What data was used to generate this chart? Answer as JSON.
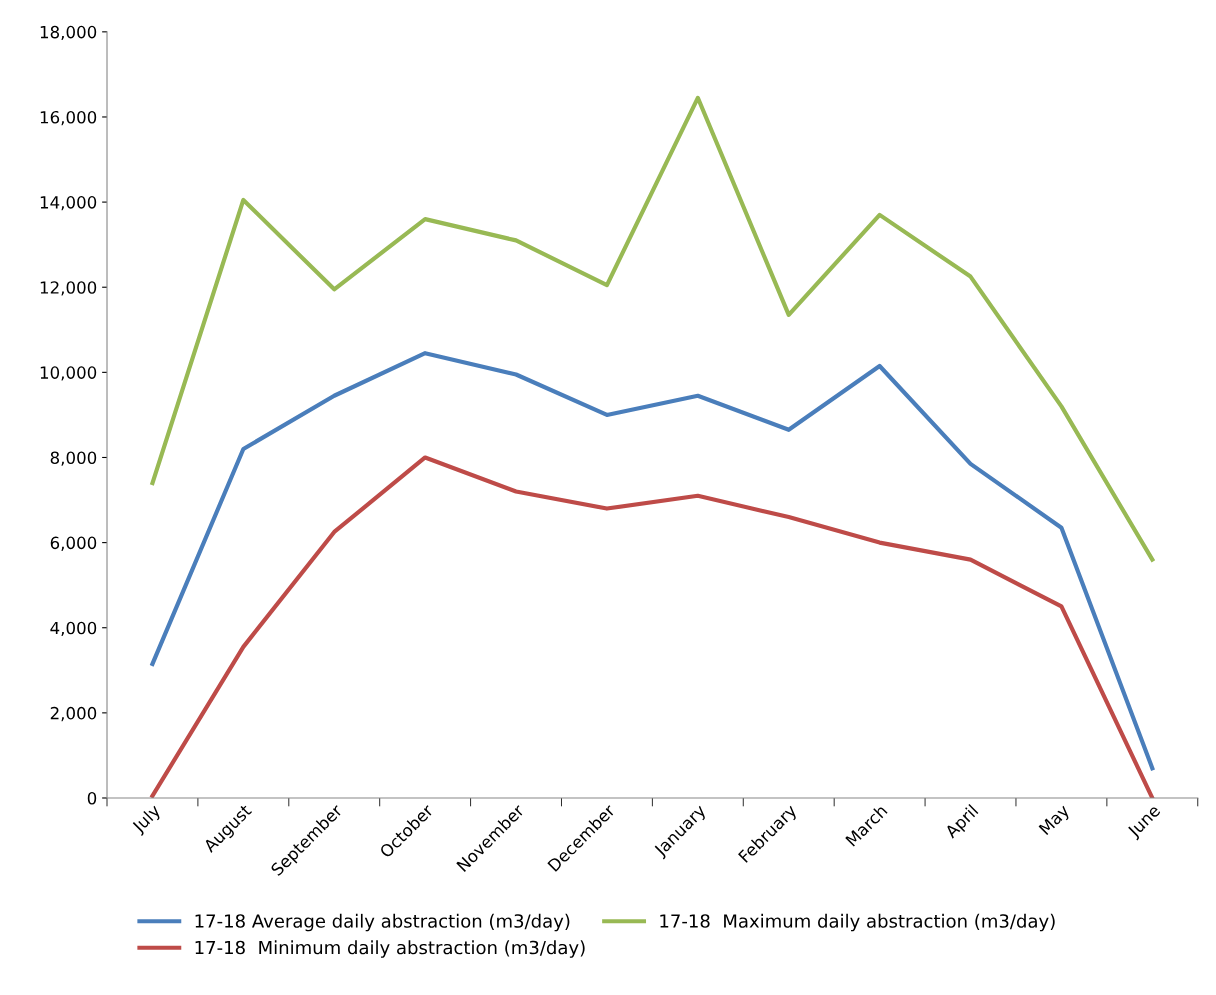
{
  "chart_data": {
    "type": "line",
    "categories": [
      "July",
      "August",
      "September",
      "October",
      "November",
      "December",
      "January",
      "February",
      "March",
      "April",
      "May",
      "June"
    ],
    "series": [
      {
        "name": "17-18 Average daily abstraction (m3/day)",
        "color": "#4a7ebb",
        "values": [
          3150,
          8200,
          9450,
          10450,
          9950,
          9000,
          9450,
          8650,
          10150,
          7850,
          6350,
          700
        ]
      },
      {
        "name": "17-18  Minimum daily abstraction (m3/day)",
        "color": "#be4b48",
        "values": [
          50,
          3550,
          6250,
          8000,
          7200,
          6800,
          7100,
          6600,
          6000,
          5600,
          4500,
          0
        ]
      },
      {
        "name": "17-18  Maximum daily abstraction (m3/day)",
        "color": "#98b954",
        "values": [
          7400,
          14050,
          11950,
          13600,
          13100,
          12050,
          16450,
          11350,
          13700,
          12250,
          9200,
          5600
        ]
      }
    ],
    "ylim": [
      0,
      18000
    ],
    "yticks": [
      {
        "value": 0,
        "label": "0"
      },
      {
        "value": 2000,
        "label": "2,000"
      },
      {
        "value": 4000,
        "label": "4,000"
      },
      {
        "value": 6000,
        "label": "6,000"
      },
      {
        "value": 8000,
        "label": "8,000"
      },
      {
        "value": 10000,
        "label": "10,000"
      },
      {
        "value": 12000,
        "label": "12,000"
      },
      {
        "value": 14000,
        "label": "14,000"
      },
      {
        "value": 16000,
        "label": "16,000"
      },
      {
        "value": 18000,
        "label": "18,000"
      }
    ],
    "grid": false,
    "legend": "bottom",
    "marker": "none",
    "line_style": "solid"
  }
}
